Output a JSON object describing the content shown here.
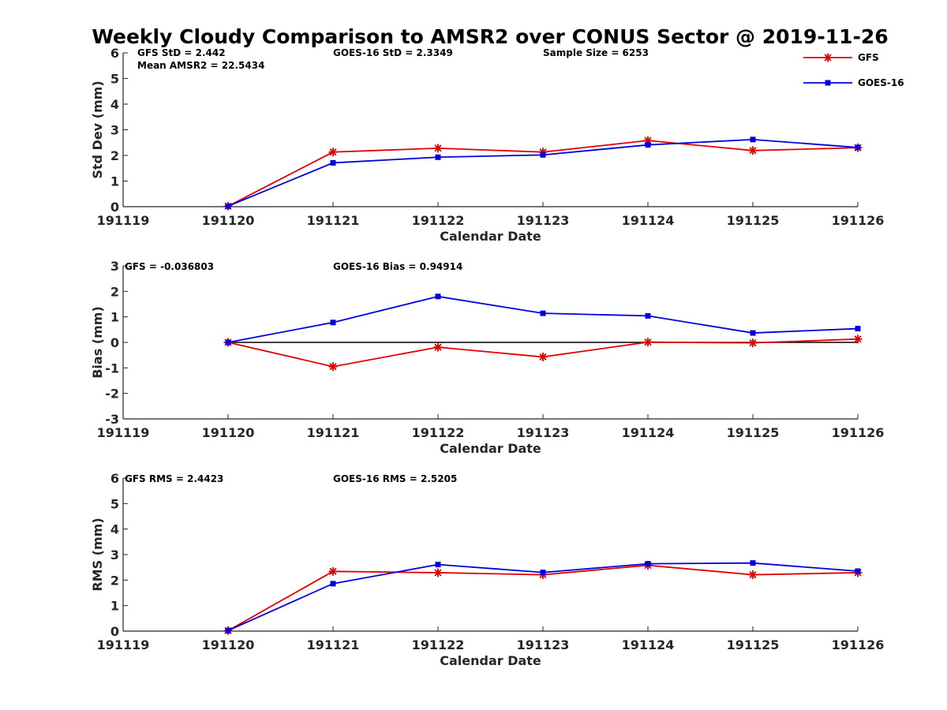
{
  "chart_data": {
    "type": "line",
    "title": "Weekly Cloudy Comparison to AMSR2 over CONUS Sector @ 2019-11-26",
    "legend": {
      "position": "top-right",
      "entries": [
        {
          "name": "GFS",
          "color": "#e00000",
          "marker": "asterisk"
        },
        {
          "name": "GOES-16",
          "color": "#0000dd",
          "marker": "square"
        }
      ]
    },
    "x_categories": [
      "191119",
      "191120",
      "191121",
      "191122",
      "191123",
      "191124",
      "191125",
      "191126"
    ],
    "panels": [
      {
        "id": "stddev",
        "ylabel": "Std Dev (mm)",
        "xlabel": "Calendar Date",
        "ylim": [
          0,
          6
        ],
        "yticks": [
          "0",
          "1",
          "2",
          "3",
          "4",
          "5",
          "6"
        ],
        "annotations": [
          "GFS StD = 2.442",
          "Mean AMSR2 = 22.5434",
          "GOES-16 StD = 2.3349",
          "Sample Size = 6253"
        ],
        "series": [
          {
            "name": "GFS",
            "x_index": [
              1,
              2,
              3,
              4,
              5,
              6,
              7
            ],
            "values": [
              0.02,
              2.13,
              2.28,
              2.13,
              2.58,
              2.19,
              2.3
            ]
          },
          {
            "name": "GOES-16",
            "x_index": [
              1,
              2,
              3,
              4,
              5,
              6,
              7
            ],
            "values": [
              0.02,
              1.71,
              1.93,
              2.02,
              2.41,
              2.62,
              2.31
            ]
          }
        ],
        "zero_line": false
      },
      {
        "id": "bias",
        "ylabel": "Bias (mm)",
        "xlabel": "Calendar Date",
        "ylim": [
          -3,
          3
        ],
        "yticks": [
          "-3",
          "-2",
          "-1",
          "0",
          "1",
          "2",
          "3"
        ],
        "annotations": [
          "GFS = -0.036803",
          "GOES-16 Bias  = 0.94914"
        ],
        "series": [
          {
            "name": "GFS",
            "x_index": [
              1,
              2,
              3,
              4,
              5,
              6,
              7
            ],
            "values": [
              0.0,
              -0.95,
              -0.19,
              -0.57,
              0.01,
              -0.02,
              0.13
            ]
          },
          {
            "name": "GOES-16",
            "x_index": [
              1,
              2,
              3,
              4,
              5,
              6,
              7
            ],
            "values": [
              0.0,
              0.78,
              1.8,
              1.14,
              1.04,
              0.37,
              0.54
            ]
          }
        ],
        "zero_line": true
      },
      {
        "id": "rms",
        "ylabel": "RMS (mm)",
        "xlabel": "Calendar Date",
        "ylim": [
          0,
          6
        ],
        "yticks": [
          "0",
          "1",
          "2",
          "3",
          "4",
          "5",
          "6"
        ],
        "annotations": [
          "GFS RMS = 2.4423",
          "GOES-16 RMS = 2.5205"
        ],
        "series": [
          {
            "name": "GFS",
            "x_index": [
              1,
              2,
              3,
              4,
              5,
              6,
              7
            ],
            "values": [
              0.02,
              2.34,
              2.29,
              2.21,
              2.58,
              2.21,
              2.29
            ]
          },
          {
            "name": "GOES-16",
            "x_index": [
              1,
              2,
              3,
              4,
              5,
              6,
              7
            ],
            "values": [
              0.02,
              1.86,
              2.61,
              2.3,
              2.64,
              2.67,
              2.35
            ]
          }
        ],
        "zero_line": false
      }
    ]
  }
}
